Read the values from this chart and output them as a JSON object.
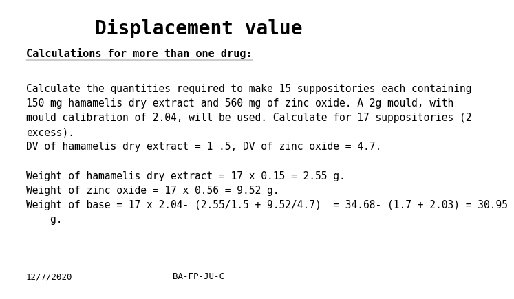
{
  "title": "Displacement value",
  "title_fontsize": 20,
  "title_fontweight": "bold",
  "title_fontfamily": "monospace",
  "background_color": "#ffffff",
  "subtitle": "Calculations for more than one drug:",
  "subtitle_fontsize": 11,
  "subtitle_fontweight": "bold",
  "subtitle_fontfamily": "monospace",
  "body_paragraph1": "Calculate the quantities required to make 15 suppositories each containing\n150 mg hamamelis dry extract and 560 mg of zinc oxide. A 2g mould, with\nmould calibration of 2.04, will be used. Calculate for 17 suppositories (2\nexcess).\nDV of hamamelis dry extract = 1 .5, DV of zinc oxide = 4.7.",
  "body_paragraph2": "Weight of hamamelis dry extract = 17 x 0.15 = 2.55 g.\nWeight of zinc oxide = 17 x 0.56 = 9.52 g.\nWeight of base = 17 x 2.04- (2.55/1.5 + 9.52/4.7)  = 34.68- (1.7 + 2.03) = 30.95\n    g.",
  "body_fontsize": 10.5,
  "body_fontfamily": "monospace",
  "footer_left": "12/7/2020",
  "footer_center": "BA-FP-JU-C",
  "footer_fontsize": 9,
  "footer_fontfamily": "monospace"
}
